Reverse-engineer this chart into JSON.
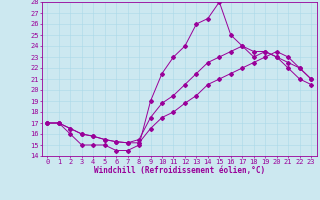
{
  "xlabel": "Windchill (Refroidissement éolien,°C)",
  "bg_color": "#cce8f0",
  "line_color": "#990099",
  "xlim": [
    -0.5,
    23.5
  ],
  "ylim": [
    14,
    28
  ],
  "xticks": [
    0,
    1,
    2,
    3,
    4,
    5,
    6,
    7,
    8,
    9,
    10,
    11,
    12,
    13,
    14,
    15,
    16,
    17,
    18,
    19,
    20,
    21,
    22,
    23
  ],
  "yticks": [
    14,
    15,
    16,
    17,
    18,
    19,
    20,
    21,
    22,
    23,
    24,
    25,
    26,
    27,
    28
  ],
  "line1_x": [
    0,
    1,
    2,
    3,
    4,
    5,
    6,
    7,
    8,
    9,
    10,
    11,
    12,
    13,
    14,
    15,
    16,
    17,
    18,
    19,
    20,
    21,
    22,
    23
  ],
  "line1_y": [
    17,
    17,
    16,
    15,
    15,
    15,
    14.5,
    14.5,
    15,
    19,
    21.5,
    23,
    24,
    26,
    26.5,
    28,
    25,
    24,
    23.5,
    23.5,
    23,
    22,
    21,
    20.5
  ],
  "line2_x": [
    0,
    1,
    2,
    3,
    4,
    5,
    6,
    7,
    8,
    9,
    10,
    11,
    12,
    13,
    14,
    15,
    16,
    17,
    18,
    19,
    20,
    21,
    22,
    23
  ],
  "line2_y": [
    17,
    17,
    16.5,
    16,
    15.8,
    15.5,
    15.3,
    15.2,
    15.5,
    17.5,
    18.8,
    19.5,
    20.5,
    21.5,
    22.5,
    23,
    23.5,
    24,
    23,
    23.5,
    23,
    22.5,
    22,
    21
  ],
  "line3_x": [
    0,
    1,
    2,
    3,
    4,
    5,
    6,
    7,
    8,
    9,
    10,
    11,
    12,
    13,
    14,
    15,
    16,
    17,
    18,
    19,
    20,
    21,
    22,
    23
  ],
  "line3_y": [
    17,
    17,
    16.5,
    16,
    15.8,
    15.5,
    15.3,
    15.2,
    15.2,
    16.5,
    17.5,
    18,
    18.8,
    19.5,
    20.5,
    21,
    21.5,
    22,
    22.5,
    23,
    23.5,
    23,
    22,
    21
  ],
  "font_size_ticks": 5,
  "font_size_xlabel": 5.5,
  "grid_color": "#aad8e8",
  "marker_size": 2.0
}
